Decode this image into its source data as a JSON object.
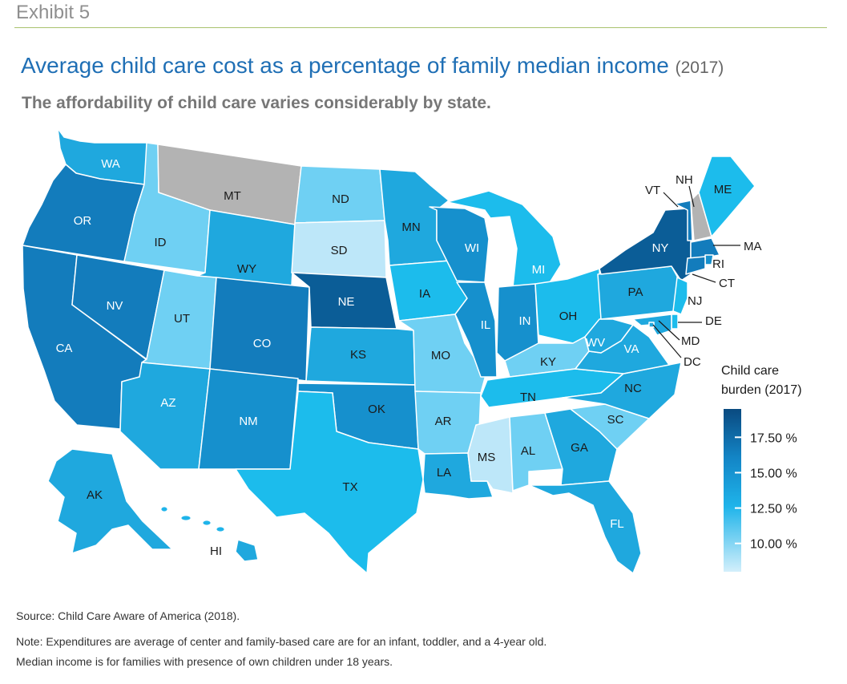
{
  "exhibit": "Exhibit 5",
  "title": "Average child care cost as a percentage of family median income",
  "title_year": "(2017)",
  "subtitle": "The affordability of child care varies considerably by state.",
  "legend": {
    "title_line1": "Child care",
    "title_line2": "burden (2017)",
    "ticks": [
      "17.50 %",
      "15.00 %",
      "12.50 %",
      "10.00 %"
    ],
    "tick_values": [
      17.5,
      15.0,
      12.5,
      10.0
    ],
    "range": [
      8.0,
      19.5
    ],
    "colors": {
      "low": "#cfeefb",
      "mid": "#1aaee6",
      "high": "#0a4f85"
    }
  },
  "no_data_color": "#b3b3b3",
  "states": [
    {
      "code": "WA",
      "level": "c4"
    },
    {
      "code": "OR",
      "level": "c6"
    },
    {
      "code": "CA",
      "level": "c6"
    },
    {
      "code": "NV",
      "level": "c6"
    },
    {
      "code": "ID",
      "level": "c2"
    },
    {
      "code": "MT",
      "level": "nd"
    },
    {
      "code": "WY",
      "level": "c4"
    },
    {
      "code": "UT",
      "level": "c2"
    },
    {
      "code": "AZ",
      "level": "c4"
    },
    {
      "code": "CO",
      "level": "c6"
    },
    {
      "code": "NM",
      "level": "c5"
    },
    {
      "code": "ND",
      "level": "c2"
    },
    {
      "code": "SD",
      "level": "c1"
    },
    {
      "code": "NE",
      "level": "c7"
    },
    {
      "code": "KS",
      "level": "c4"
    },
    {
      "code": "OK",
      "level": "c5"
    },
    {
      "code": "TX",
      "level": "c3"
    },
    {
      "code": "MN",
      "level": "c4"
    },
    {
      "code": "IA",
      "level": "c3"
    },
    {
      "code": "MO",
      "level": "c2"
    },
    {
      "code": "AR",
      "level": "c2"
    },
    {
      "code": "LA",
      "level": "c4"
    },
    {
      "code": "WI",
      "level": "c5"
    },
    {
      "code": "IL",
      "level": "c5"
    },
    {
      "code": "MI",
      "level": "c3"
    },
    {
      "code": "IN",
      "level": "c5"
    },
    {
      "code": "OH",
      "level": "c3"
    },
    {
      "code": "KY",
      "level": "c2"
    },
    {
      "code": "TN",
      "level": "c3"
    },
    {
      "code": "MS",
      "level": "c1"
    },
    {
      "code": "AL",
      "level": "c2"
    },
    {
      "code": "GA",
      "level": "c4"
    },
    {
      "code": "FL",
      "level": "c4"
    },
    {
      "code": "SC",
      "level": "c2"
    },
    {
      "code": "NC",
      "level": "c4"
    },
    {
      "code": "VA",
      "level": "c4"
    },
    {
      "code": "WV",
      "level": "c4"
    },
    {
      "code": "PA",
      "level": "c4"
    },
    {
      "code": "NY",
      "level": "c7"
    },
    {
      "code": "VT",
      "level": "c6"
    },
    {
      "code": "NH",
      "level": "nd"
    },
    {
      "code": "ME",
      "level": "c3"
    },
    {
      "code": "MA",
      "level": "c6"
    },
    {
      "code": "RI",
      "level": "c5"
    },
    {
      "code": "CT",
      "level": "c6"
    },
    {
      "code": "NJ",
      "level": "c3"
    },
    {
      "code": "DE",
      "level": "c3"
    },
    {
      "code": "MD",
      "level": "c4"
    },
    {
      "code": "DC",
      "level": "c4"
    },
    {
      "code": "AK",
      "level": "c4"
    },
    {
      "code": "HI",
      "level": "c4"
    }
  ],
  "notes": {
    "source": "Source: Child Care Aware of America (2018).",
    "note": "Note: Expenditures are average of center and family-based care are for an infant, toddler, and a 4-year old.",
    "income": "Median income is for families with presence of own children under 18 years."
  }
}
